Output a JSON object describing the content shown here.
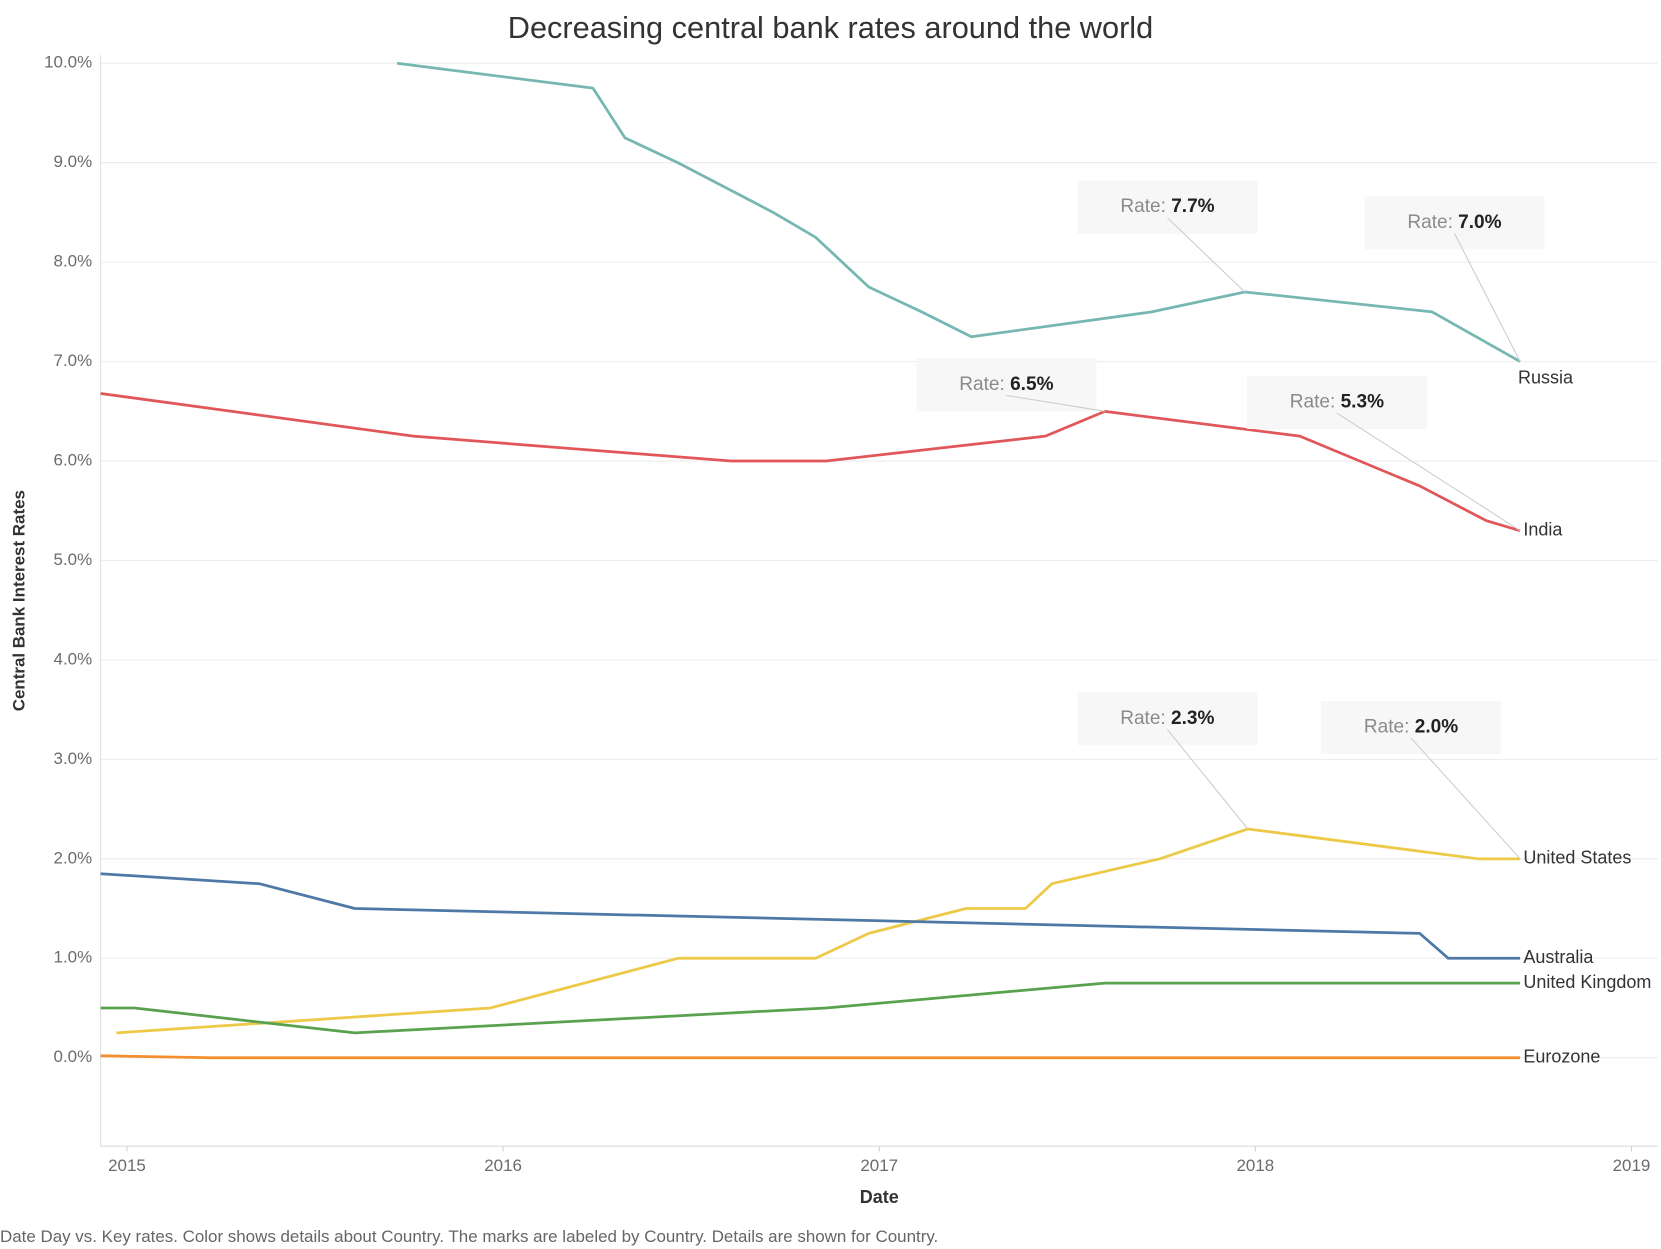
{
  "chart_data": {
    "type": "line",
    "title": "Decreasing central bank rates around the world",
    "x_label": "Date",
    "y_label": "Central Bank Interest Rates",
    "caption": "Date Day vs. Key rates.  Color shows details about Country.  The marks are labeled by Country.  Details are shown for Country.",
    "xlim": [
      2014.93,
      2019.07
    ],
    "xticks": [
      2015,
      2016,
      2017,
      2018,
      2019
    ],
    "ylim": [
      -0.89,
      10.05
    ],
    "yticks": [
      {
        "value": 0,
        "label": "0.0%"
      },
      {
        "value": 1,
        "label": "1.0%"
      },
      {
        "value": 2,
        "label": "2.0%"
      },
      {
        "value": 3,
        "label": "3.0%"
      },
      {
        "value": 4,
        "label": "4.0%"
      },
      {
        "value": 5,
        "label": "5.0%"
      },
      {
        "value": 6,
        "label": "6.0%"
      },
      {
        "value": 7,
        "label": "7.0%"
      },
      {
        "value": 8,
        "label": "8.0%"
      },
      {
        "value": 9,
        "label": "9.0%"
      },
      {
        "value": 10,
        "label": "10.0%"
      }
    ],
    "grid": true,
    "series": [
      {
        "name": "Russia",
        "color": "#76b7b2",
        "x": [
          2015.718,
          2016.239,
          2016.324,
          2016.465,
          2016.718,
          2016.831,
          2016.972,
          2017.113,
          2017.245,
          2017.724,
          2017.972,
          2018.47,
          2018.704
        ],
        "values": [
          10.0,
          9.75,
          9.25,
          9.0,
          8.5,
          8.25,
          7.75,
          7.5,
          7.25,
          7.5,
          7.7,
          7.5,
          7.0
        ],
        "value_labels": [
          null,
          null,
          null,
          null,
          null,
          null,
          null,
          null,
          null,
          null,
          "Rate: 7.7%",
          null,
          "Rate: 7.0%"
        ]
      },
      {
        "name": "India",
        "color": "#e15759",
        "x": [
          2014.93,
          2015.761,
          2016.606,
          2016.859,
          2017.442,
          2017.6,
          2018.118,
          2018.437,
          2018.614,
          2018.704
        ],
        "values": [
          6.68,
          6.25,
          6.0,
          6.0,
          6.25,
          6.5,
          6.25,
          5.75,
          5.4,
          5.3
        ],
        "value_labels": [
          null,
          null,
          null,
          null,
          null,
          "Rate: 6.5%",
          null,
          null,
          null,
          "Rate: 5.3%"
        ]
      },
      {
        "name": "United States",
        "color": "#edc948",
        "x": [
          2014.972,
          2015.966,
          2016.465,
          2016.831,
          2016.972,
          2017.231,
          2017.389,
          2017.459,
          2017.746,
          2017.98,
          2018.592,
          2018.704
        ],
        "values": [
          0.25,
          0.5,
          1.0,
          1.0,
          1.25,
          1.5,
          1.5,
          1.75,
          2.0,
          2.3,
          2.0,
          2.0
        ],
        "value_labels": [
          null,
          null,
          null,
          null,
          null,
          null,
          null,
          null,
          null,
          "Rate: 2.3%",
          null,
          "Rate: 2.0%"
        ]
      },
      {
        "name": "Australia",
        "color": "#4e79a7",
        "x": [
          2014.93,
          2015.352,
          2015.606,
          2018.437,
          2018.513,
          2018.704
        ],
        "values": [
          1.85,
          1.75,
          1.5,
          1.25,
          1.0,
          1.0
        ]
      },
      {
        "name": "United Kingdom",
        "color": "#59a14f",
        "x": [
          2014.93,
          2015.02,
          2015.606,
          2016.859,
          2017.6,
          2018.704
        ],
        "values": [
          0.5,
          0.5,
          0.25,
          0.5,
          0.75,
          0.75
        ]
      },
      {
        "name": "Eurozone",
        "color": "#f28e2b",
        "x": [
          2014.93,
          2015.225,
          2018.704
        ],
        "values": [
          0.02,
          0.0,
          0.0
        ]
      }
    ]
  }
}
